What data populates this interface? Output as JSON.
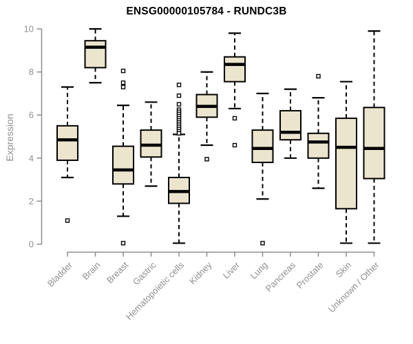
{
  "chart_data": {
    "type": "boxplot",
    "title": "ENSG00000105784 - RUNDC3B",
    "ylabel": "Expression",
    "xlabel": "",
    "ylim": [
      0,
      10
    ],
    "yticks": [
      0,
      2,
      4,
      6,
      8,
      10
    ],
    "grid": "off",
    "categories": [
      "Bladder",
      "Brain",
      "Breast",
      "Gastric",
      "Hematopoietic cells",
      "Kidney",
      "Liver",
      "Lung",
      "Pancreas",
      "Prostate",
      "Skin",
      "Unknown / Other"
    ],
    "series": [
      {
        "name": "Bladder",
        "whisker_low": 3.1,
        "q1": 3.9,
        "median": 4.85,
        "q3": 5.5,
        "whisker_high": 7.3,
        "outliers": [
          1.1
        ]
      },
      {
        "name": "Brain",
        "whisker_low": 7.5,
        "q1": 8.2,
        "median": 9.15,
        "q3": 9.45,
        "whisker_high": 10.0,
        "outliers": []
      },
      {
        "name": "Breast",
        "whisker_low": 1.3,
        "q1": 2.8,
        "median": 3.45,
        "q3": 4.55,
        "whisker_high": 6.45,
        "outliers": [
          8.05,
          7.5,
          7.3,
          0.05
        ]
      },
      {
        "name": "Gastric",
        "whisker_low": 2.7,
        "q1": 4.05,
        "median": 4.6,
        "q3": 5.3,
        "whisker_high": 6.6,
        "outliers": []
      },
      {
        "name": "Hematopoietic cells",
        "whisker_low": 0.05,
        "q1": 1.9,
        "median": 2.45,
        "q3": 3.1,
        "whisker_high": 5.1,
        "outliers": [
          7.4,
          6.9,
          6.5,
          6.25,
          6.15,
          6.05,
          5.95,
          5.85,
          5.75,
          5.65,
          5.55,
          5.45,
          5.35,
          5.25,
          5.15
        ]
      },
      {
        "name": "Kidney",
        "whisker_low": 4.6,
        "q1": 5.9,
        "median": 6.4,
        "q3": 6.95,
        "whisker_high": 8.0,
        "outliers": [
          3.95
        ]
      },
      {
        "name": "Liver",
        "whisker_low": 6.3,
        "q1": 7.55,
        "median": 8.35,
        "q3": 8.7,
        "whisker_high": 9.8,
        "outliers": [
          5.85,
          4.6
        ]
      },
      {
        "name": "Lung",
        "whisker_low": 2.1,
        "q1": 3.8,
        "median": 4.45,
        "q3": 5.3,
        "whisker_high": 7.0,
        "outliers": [
          0.05
        ]
      },
      {
        "name": "Pancreas",
        "whisker_low": 4.0,
        "q1": 4.85,
        "median": 5.2,
        "q3": 6.2,
        "whisker_high": 7.2,
        "outliers": []
      },
      {
        "name": "Prostate",
        "whisker_low": 2.6,
        "q1": 4.0,
        "median": 4.75,
        "q3": 5.15,
        "whisker_high": 6.8,
        "outliers": [
          7.8
        ]
      },
      {
        "name": "Skin",
        "whisker_low": 0.05,
        "q1": 1.65,
        "median": 4.5,
        "q3": 5.85,
        "whisker_high": 7.55,
        "outliers": []
      },
      {
        "name": "Unknown / Other",
        "whisker_low": 0.05,
        "q1": 3.05,
        "median": 4.45,
        "q3": 6.35,
        "whisker_high": 9.9,
        "outliers": []
      }
    ],
    "colors": {
      "box_fill": "#EBE5CE",
      "box_stroke": "#000000",
      "median": "#000000",
      "whisker": "#000000",
      "axis": "#8C8C8C",
      "tick_label": "#8F8F8F",
      "title": "#000000",
      "background": "#FFFFFF"
    }
  }
}
